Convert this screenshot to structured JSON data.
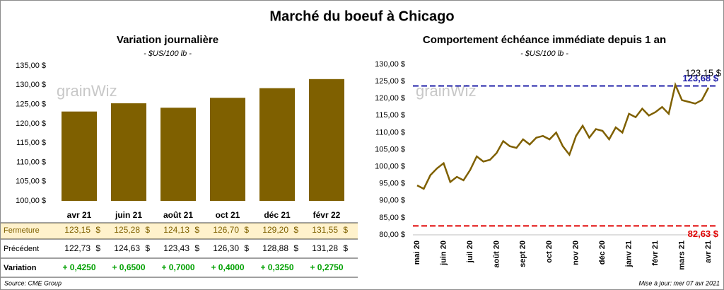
{
  "title": "Marché du boeuf à Chicago",
  "watermark": "grainWiz",
  "source": "Source: CME Group",
  "update": "Mise à jour: mer 07 avr 2021",
  "chart_data": [
    {
      "type": "bar",
      "title": "Variation  journalière",
      "subtitle": "- $US/100 lb -",
      "categories": [
        "avr 21",
        "juin 21",
        "août 21",
        "oct 21",
        "déc 21",
        "févr 22"
      ],
      "values": [
        123.15,
        125.28,
        124.13,
        126.7,
        129.2,
        131.55
      ],
      "color": "#7f6000",
      "ylim": [
        100,
        135
      ],
      "yticks": [
        {
          "value": 100,
          "label": "100,00 $"
        },
        {
          "value": 105,
          "label": "105,00 $"
        },
        {
          "value": 110,
          "label": "110,00 $"
        },
        {
          "value": 115,
          "label": "115,00 $"
        },
        {
          "value": 120,
          "label": "120,00 $"
        },
        {
          "value": 125,
          "label": "125,00 $"
        },
        {
          "value": 130,
          "label": "130,00 $"
        },
        {
          "value": 135,
          "label": "135,00 $"
        }
      ],
      "grid": false
    },
    {
      "type": "line",
      "title": "Comportement  échéance immédiate depuis 1 an",
      "subtitle": "- $US/100 lb -",
      "categories": [
        "mai 20",
        null,
        null,
        null,
        "juin 20",
        null,
        null,
        null,
        "juil 20",
        null,
        null,
        null,
        "août 20",
        null,
        null,
        null,
        "sept 20",
        null,
        null,
        null,
        "oct 20",
        null,
        null,
        null,
        "nov 20",
        null,
        null,
        null,
        "déc 20",
        null,
        null,
        null,
        "janv 21",
        null,
        null,
        null,
        "févr 21",
        null,
        null,
        null,
        "mars 21",
        null,
        null,
        null,
        "avr 21"
      ],
      "series": [
        {
          "name": "Échéance immédiate",
          "color": "#7f6000",
          "values": [
            94.5,
            93.5,
            97.5,
            99.5,
            101,
            95.5,
            97,
            96,
            99,
            103,
            101.5,
            102,
            104,
            107.5,
            106,
            105.5,
            108,
            106.5,
            108.5,
            109,
            108,
            110,
            106,
            103.5,
            109,
            112,
            108.5,
            111,
            110.5,
            108,
            111.5,
            110,
            115.5,
            114.5,
            117,
            115,
            116,
            117.5,
            115.5,
            124,
            119.5,
            119,
            118.5,
            119.5,
            123.15
          ]
        }
      ],
      "ylim": [
        80,
        130
      ],
      "yticks": [
        {
          "value": 80,
          "label": "80,00 $"
        },
        {
          "value": 85,
          "label": "85,00 $"
        },
        {
          "value": 90,
          "label": "90,00 $"
        },
        {
          "value": 95,
          "label": "95,00 $"
        },
        {
          "value": 100,
          "label": "100,00 $"
        },
        {
          "value": 105,
          "label": "105,00 $"
        },
        {
          "value": 110,
          "label": "110,00 $"
        },
        {
          "value": 115,
          "label": "115,00 $"
        },
        {
          "value": 120,
          "label": "120,00 $"
        },
        {
          "value": 125,
          "label": "125,00 $"
        },
        {
          "value": 130,
          "label": "130,00 $"
        }
      ],
      "grid": false,
      "annotations": [
        {
          "value": 123.15,
          "label": "123,15 $",
          "color": "#000000"
        }
      ],
      "reference_lines": [
        {
          "value": 123.68,
          "label": "123,68 $",
          "color": "#1f1fa8"
        },
        {
          "value": 82.63,
          "label": "82,63 $",
          "color": "#e00000"
        }
      ]
    }
  ],
  "table": {
    "rows": [
      {
        "label": "Fermeture",
        "unit": "$",
        "values": [
          "123,15",
          "125,28",
          "124,13",
          "126,70",
          "129,20",
          "131,55"
        ]
      },
      {
        "label": "Précédent",
        "unit": "$",
        "values": [
          "122,73",
          "124,63",
          "123,43",
          "126,30",
          "128,88",
          "131,28"
        ]
      },
      {
        "label": "Variation",
        "values": [
          "+ 0,4250",
          "+ 0,6500",
          "+ 0,7000",
          "+ 0,4000",
          "+ 0,3250",
          "+ 0,2750"
        ]
      }
    ]
  }
}
